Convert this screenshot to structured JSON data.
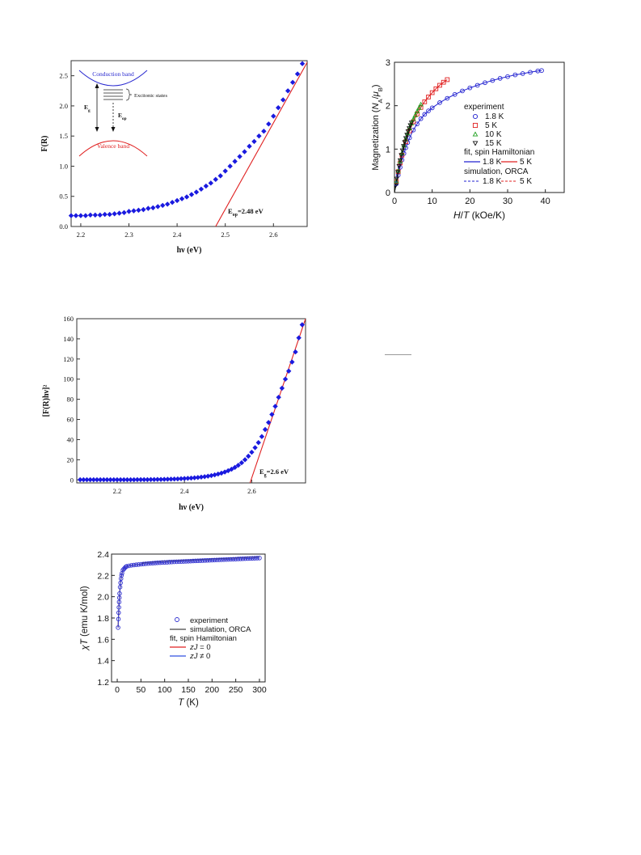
{
  "chart_data": [
    {
      "id": "chart-a",
      "type": "scatter",
      "title": "",
      "xlabel": "hν (eV)",
      "ylabel": "F(R)",
      "xlim": [
        2.18,
        2.67
      ],
      "ylim": [
        0.0,
        2.75
      ],
      "xticks": [
        "2.2",
        "2.3",
        "2.4",
        "2.5",
        "2.6"
      ],
      "xtick_values": [
        2.2,
        2.3,
        2.4,
        2.5,
        2.6
      ],
      "yticks": [
        "0.0",
        "0.5",
        "1.0",
        "1.5",
        "2.0",
        "2.5"
      ],
      "ytick_values": [
        0.0,
        0.5,
        1.0,
        1.5,
        2.0,
        2.5
      ],
      "series": [
        {
          "marker": "diamond",
          "color": "#1a1adf",
          "x": [
            2.18,
            2.19,
            2.2,
            2.21,
            2.22,
            2.23,
            2.24,
            2.25,
            2.26,
            2.27,
            2.28,
            2.29,
            2.3,
            2.31,
            2.32,
            2.33,
            2.34,
            2.35,
            2.36,
            2.37,
            2.38,
            2.39,
            2.4,
            2.41,
            2.42,
            2.43,
            2.44,
            2.45,
            2.46,
            2.47,
            2.48,
            2.49,
            2.5,
            2.51,
            2.52,
            2.53,
            2.54,
            2.55,
            2.56,
            2.57,
            2.58,
            2.59,
            2.6,
            2.61,
            2.62,
            2.63,
            2.64,
            2.65,
            2.66
          ],
          "y": [
            0.18,
            0.18,
            0.18,
            0.18,
            0.19,
            0.19,
            0.19,
            0.2,
            0.2,
            0.21,
            0.22,
            0.23,
            0.25,
            0.26,
            0.27,
            0.28,
            0.3,
            0.31,
            0.33,
            0.35,
            0.37,
            0.4,
            0.43,
            0.46,
            0.49,
            0.53,
            0.57,
            0.62,
            0.67,
            0.72,
            0.78,
            0.84,
            0.92,
            1.0,
            1.08,
            1.16,
            1.24,
            1.33,
            1.41,
            1.5,
            1.58,
            1.7,
            1.83,
            1.97,
            2.1,
            2.25,
            2.39,
            2.53,
            2.7
          ]
        }
      ],
      "fit_line": {
        "color": "#e02020",
        "x": [
          2.48,
          2.672
        ],
        "y": [
          0.0,
          2.75
        ]
      },
      "annotations": {
        "eop": "E",
        "eop_sub": "op",
        "eop_rest": "=2.48 eV",
        "conduction": "Conduction band",
        "valence": "Valence band",
        "excitonic": "Excitonic states",
        "eg": "E",
        "eg_sub": "g",
        "eop_arrow": "E",
        "eop_arrow_sub": "op"
      },
      "grid": false
    },
    {
      "id": "chart-b",
      "type": "scatter",
      "title": "",
      "xlabel": "H/T (kOe/K)",
      "ylabel": "Magnetization (Nₐμʙ)",
      "ylabel_parts": [
        "Magnetization (",
        "N",
        "A",
        "/",
        "μ",
        "B",
        ")"
      ],
      "xlabel_parts": [
        "H",
        "/",
        "T",
        " (kOe/K)"
      ],
      "xlim": [
        0,
        45
      ],
      "ylim": [
        0,
        3
      ],
      "xticks": [
        "0",
        "10",
        "20",
        "30",
        "40"
      ],
      "xtick_values": [
        0,
        10,
        20,
        30,
        40
      ],
      "yticks": [
        "0",
        "1",
        "2",
        "3"
      ],
      "ytick_values": [
        0,
        1,
        2,
        3
      ],
      "legend": {
        "placement": "center-right",
        "experiment": "experiment",
        "exp_items": [
          "1.8 K",
          "5 K",
          "10 K",
          "15 K"
        ],
        "fit": "fit, spin Hamiltonian",
        "fit_items": [
          "1.8 K",
          "5 K"
        ],
        "sim": "simulation, ORCA",
        "sim_items": [
          "1.8 K",
          "5 K"
        ]
      },
      "series": [
        {
          "name": "1.8 K",
          "marker": "circle",
          "color": "#2020d0",
          "x": [
            0.5,
            1.0,
            1.5,
            2.0,
            2.5,
            3.0,
            3.5,
            4.0,
            5.0,
            6.0,
            7.0,
            8.0,
            9.0,
            10.0,
            12.0,
            14.0,
            16.0,
            18.0,
            20.0,
            22.0,
            24.0,
            26.0,
            28.0,
            30.0,
            32.0,
            34.0,
            36.0,
            38.0,
            39.0
          ],
          "y": [
            0.2,
            0.4,
            0.58,
            0.75,
            0.9,
            1.03,
            1.15,
            1.26,
            1.44,
            1.58,
            1.7,
            1.8,
            1.88,
            1.95,
            2.07,
            2.17,
            2.26,
            2.34,
            2.41,
            2.47,
            2.53,
            2.58,
            2.63,
            2.67,
            2.71,
            2.74,
            2.77,
            2.8,
            2.81
          ]
        },
        {
          "name": "5 K",
          "marker": "square",
          "color": "#e02020",
          "x": [
            0.5,
            1.0,
            1.5,
            2.0,
            3.0,
            4.0,
            5.0,
            6.0,
            7.0,
            8.0,
            9.0,
            10.0,
            11.0,
            12.0,
            13.0,
            14.0
          ],
          "y": [
            0.25,
            0.48,
            0.68,
            0.86,
            1.17,
            1.42,
            1.63,
            1.81,
            1.96,
            2.09,
            2.2,
            2.3,
            2.39,
            2.47,
            2.54,
            2.6
          ]
        },
        {
          "name": "10 K",
          "marker": "triangle-up",
          "color": "#20a020",
          "x": [
            0.5,
            1.0,
            1.5,
            2.0,
            2.5,
            3.0,
            3.5,
            4.0,
            4.5,
            5.0,
            5.5,
            6.0,
            6.5,
            7.0
          ],
          "y": [
            0.26,
            0.5,
            0.72,
            0.91,
            1.08,
            1.23,
            1.36,
            1.48,
            1.59,
            1.69,
            1.78,
            1.87,
            1.95,
            2.03
          ]
        },
        {
          "name": "15 K",
          "marker": "triangle-down",
          "color": "#111111",
          "x": [
            0.3,
            0.6,
            0.9,
            1.2,
            1.5,
            1.8,
            2.1,
            2.4,
            2.7,
            3.0,
            3.3,
            3.6,
            3.9,
            4.2,
            4.5
          ],
          "y": [
            0.16,
            0.32,
            0.47,
            0.61,
            0.74,
            0.86,
            0.97,
            1.07,
            1.16,
            1.25,
            1.33,
            1.41,
            1.48,
            1.55,
            1.61
          ]
        }
      ],
      "grid": false
    },
    {
      "id": "chart-c",
      "type": "scatter",
      "title": "",
      "xlabel": "hν (eV)",
      "ylabel": "[F(R)hν]²",
      "xlim": [
        2.08,
        2.76
      ],
      "ylim": [
        -3,
        160
      ],
      "xticks": [
        "2.2",
        "2.4",
        "2.6"
      ],
      "xtick_values": [
        2.2,
        2.4,
        2.6
      ],
      "yticks": [
        "0",
        "20",
        "40",
        "60",
        "80",
        "100",
        "120",
        "140",
        "160"
      ],
      "ytick_values": [
        0,
        20,
        40,
        60,
        80,
        100,
        120,
        140,
        160
      ],
      "series": [
        {
          "marker": "diamond",
          "color": "#1a1adf",
          "x": [
            2.09,
            2.1,
            2.11,
            2.12,
            2.13,
            2.14,
            2.15,
            2.16,
            2.17,
            2.18,
            2.19,
            2.2,
            2.21,
            2.22,
            2.23,
            2.24,
            2.25,
            2.26,
            2.27,
            2.28,
            2.29,
            2.3,
            2.31,
            2.32,
            2.33,
            2.34,
            2.35,
            2.36,
            2.37,
            2.38,
            2.39,
            2.4,
            2.41,
            2.42,
            2.43,
            2.44,
            2.45,
            2.46,
            2.47,
            2.48,
            2.49,
            2.5,
            2.51,
            2.52,
            2.53,
            2.54,
            2.55,
            2.56,
            2.57,
            2.58,
            2.59,
            2.6,
            2.61,
            2.62,
            2.63,
            2.64,
            2.65,
            2.66,
            2.67,
            2.68,
            2.69,
            2.7,
            2.71,
            2.72,
            2.73,
            2.74,
            2.75
          ],
          "y": [
            0.2,
            0.2,
            0.2,
            0.2,
            0.2,
            0.2,
            0.2,
            0.2,
            0.2,
            0.2,
            0.2,
            0.2,
            0.2,
            0.2,
            0.2,
            0.2,
            0.2,
            0.3,
            0.3,
            0.3,
            0.3,
            0.4,
            0.4,
            0.5,
            0.5,
            0.6,
            0.7,
            0.8,
            0.9,
            1.0,
            1.2,
            1.4,
            1.6,
            1.8,
            2.1,
            2.4,
            2.8,
            3.2,
            3.7,
            4.3,
            5.0,
            5.8,
            6.7,
            7.8,
            9.1,
            10.6,
            12.4,
            14.5,
            17.0,
            20.0,
            23.5,
            27.5,
            32.0,
            37.0,
            43.0,
            50.0,
            57.0,
            65.0,
            73.0,
            82.0,
            91.0,
            100.0,
            108.0,
            117.0,
            127.0,
            141.0,
            154.0
          ]
        }
      ],
      "fit_line": {
        "color": "#e02020",
        "x": [
          2.595,
          2.76
        ],
        "y": [
          -3,
          160
        ]
      },
      "annotations": {
        "eg": "E",
        "eg_sub": "g",
        "eg_rest": "=2.6 eV"
      },
      "grid": false
    },
    {
      "id": "chart-d",
      "type": "scatter",
      "title": "",
      "xlabel": "T (K)",
      "xlabel_parts": [
        "T",
        " (K)"
      ],
      "ylabel": "χT (emu K/mol)",
      "ylabel_parts": [
        "χ",
        "T",
        " (emu K/mol)"
      ],
      "xlim": [
        -12,
        312
      ],
      "ylim": [
        1.2,
        2.4
      ],
      "xticks": [
        "0",
        "50",
        "100",
        "150",
        "200",
        "250",
        "300"
      ],
      "xtick_values": [
        0,
        50,
        100,
        150,
        200,
        250,
        300
      ],
      "yticks": [
        "1.2",
        "1.4",
        "1.6",
        "1.8",
        "2.0",
        "2.2",
        "2.4"
      ],
      "ytick_values": [
        1.2,
        1.4,
        1.6,
        1.8,
        2.0,
        2.2,
        2.4
      ],
      "legend": {
        "placement": "lower-right",
        "experiment": "experiment",
        "sim": "simulation, ORCA",
        "fit": "fit, spin Hamiltonian",
        "zj0": "zJ = 0",
        "zj0_parts": [
          "zJ",
          " = 0"
        ],
        "zjn": "zJ ≠ 0",
        "zjn_parts": [
          "zJ",
          " ≠ 0"
        ]
      },
      "series": [
        {
          "name": "experiment",
          "marker": "circle",
          "color": "#3030d0",
          "x": [
            1.8,
            2.5,
            3.0,
            3.5,
            4.0,
            4.5,
            5.0,
            6.0,
            7.0,
            8.0,
            9.0,
            10.0,
            12.0,
            14.0,
            16.0,
            18.0,
            20.0,
            25.0,
            30.0,
            35.0,
            40.0,
            45.0,
            50.0,
            55.0,
            60.0,
            65.0,
            70.0,
            75.0,
            80.0,
            85.0,
            90.0,
            95.0,
            100.0,
            105.0,
            110.0,
            115.0,
            120.0,
            125.0,
            130.0,
            135.0,
            140.0,
            145.0,
            150.0,
            155.0,
            160.0,
            165.0,
            170.0,
            175.0,
            180.0,
            185.0,
            190.0,
            195.0,
            200.0,
            205.0,
            210.0,
            215.0,
            220.0,
            225.0,
            230.0,
            235.0,
            240.0,
            245.0,
            250.0,
            255.0,
            260.0,
            265.0,
            270.0,
            275.0,
            280.0,
            285.0,
            290.0,
            295.0,
            300.0
          ],
          "y": [
            1.71,
            1.79,
            1.85,
            1.9,
            1.95,
            1.99,
            2.03,
            2.09,
            2.13,
            2.17,
            2.2,
            2.22,
            2.25,
            2.26,
            2.27,
            2.28,
            2.285,
            2.29,
            2.295,
            2.297,
            2.3,
            2.302,
            2.305,
            2.307,
            2.309,
            2.311,
            2.313,
            2.315,
            2.316,
            2.318,
            2.319,
            2.321,
            2.322,
            2.323,
            2.325,
            2.326,
            2.327,
            2.328,
            2.329,
            2.33,
            2.331,
            2.332,
            2.333,
            2.334,
            2.335,
            2.336,
            2.337,
            2.338,
            2.339,
            2.34,
            2.341,
            2.342,
            2.343,
            2.344,
            2.345,
            2.346,
            2.347,
            2.348,
            2.349,
            2.35,
            2.351,
            2.352,
            2.353,
            2.354,
            2.355,
            2.356,
            2.357,
            2.358,
            2.359,
            2.36,
            2.361,
            2.362,
            2.363
          ]
        }
      ],
      "grid": false
    }
  ]
}
